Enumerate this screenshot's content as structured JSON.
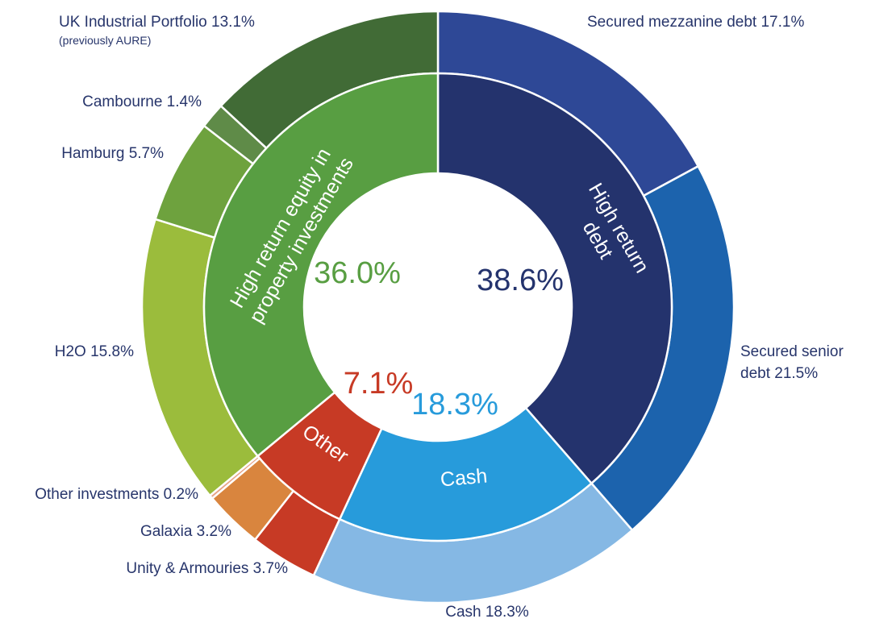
{
  "chart_data": {
    "type": "donut",
    "inner_ring": [
      {
        "name": "High return debt",
        "lines": [
          "High return",
          "debt"
        ],
        "value": 38.6,
        "value_label": "38.6%",
        "color": "#24336d",
        "label_color": "#24336d"
      },
      {
        "name": "Cash",
        "lines": [
          "Cash"
        ],
        "value": 18.3,
        "value_label": "18.3%",
        "color": "#279bdb",
        "label_color": "#279bdb"
      },
      {
        "name": "Other",
        "lines": [
          "Other"
        ],
        "value": 7.1,
        "value_label": "7.1%",
        "color": "#c73a25",
        "label_color": "#c73a25"
      },
      {
        "name": "High return equity in property investments",
        "lines": [
          "High return equity in",
          "property investments"
        ],
        "value": 36.0,
        "value_label": "36.0%",
        "color": "#589e42",
        "label_color": "#589e42"
      }
    ],
    "outer_ring": [
      {
        "label": "Secured mezzanine debt 17.1%",
        "lines": [
          "Secured mezzanine debt 17.1%"
        ],
        "value": 17.1,
        "color": "#2e4896"
      },
      {
        "label": "Secured senior debt 21.5%",
        "lines": [
          "Secured senior",
          "debt 21.5%"
        ],
        "value": 21.5,
        "color": "#1c63ad"
      },
      {
        "label": "Cash 18.3%",
        "lines": [
          "Cash 18.3%"
        ],
        "value": 18.3,
        "color": "#85b8e4"
      },
      {
        "label": "Unity & Armouries 3.7%",
        "lines": [
          "Unity & Armouries 3.7%"
        ],
        "value": 3.7,
        "color": "#c73a25"
      },
      {
        "label": "Galaxia 3.2%",
        "lines": [
          "Galaxia 3.2%"
        ],
        "value": 3.2,
        "color": "#d9853e"
      },
      {
        "label": "Other investments 0.2%",
        "lines": [
          "Other investments 0.2%"
        ],
        "value": 0.2,
        "color": "#e7a386"
      },
      {
        "label": "H2O 15.8%",
        "lines": [
          "H2O 15.8%"
        ],
        "value": 15.8,
        "color": "#9bbc3c"
      },
      {
        "label": "Hamburg 5.7%",
        "lines": [
          "Hamburg 5.7%"
        ],
        "value": 5.7,
        "color": "#6ea23e"
      },
      {
        "label": "Cambourne 1.4%",
        "lines": [
          "Cambourne 1.4%"
        ],
        "value": 1.4,
        "color": "#5f8b48"
      },
      {
        "label": "UK Industrial Portfolio 13.1%",
        "lines": [
          "UK Industrial Portfolio 13.1%"
        ],
        "sublabel": "(previously AURE)",
        "value": 13.1,
        "color": "#416b36"
      }
    ]
  }
}
